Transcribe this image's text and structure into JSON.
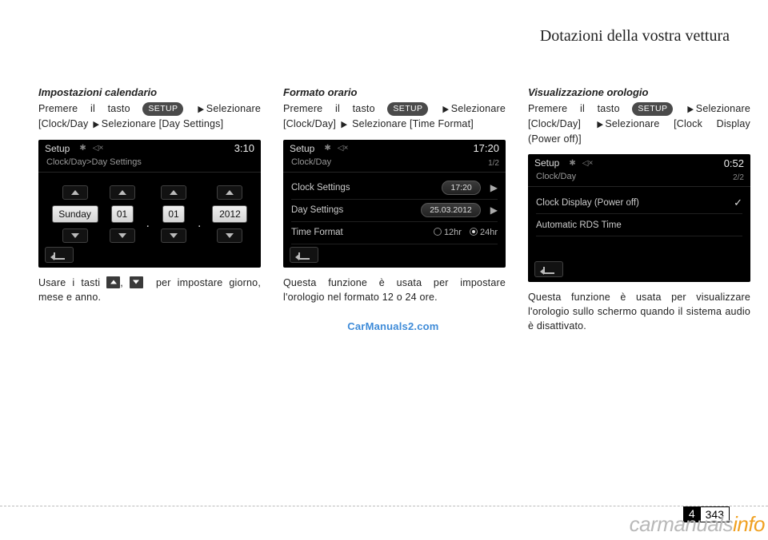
{
  "header": {
    "title": "Dotazioni della vostra vettura"
  },
  "col1": {
    "heading": "Impostazioni calendario",
    "line1a": "Premere il tasto ",
    "setup": "SETUP",
    "line1b": "Selezionare [Clock/Day",
    "line1c": "Selezionare [Day Settings]",
    "screen": {
      "title": "Setup",
      "time": "3:10",
      "breadcrumb": "Clock/Day>Day Settings",
      "day": "Sunday",
      "dd": "01",
      "mm": "01",
      "yyyy": "2012"
    },
    "after1": "Usare  i  tasti ",
    "after_comma": ", ",
    "after2": "per  impostare giorno, mese e anno."
  },
  "col2": {
    "heading": "Formato orario",
    "line1a": "Premere il tasto ",
    "setup": "SETUP",
    "line1b": "Selezionare [Clock/Day] ",
    "line1c": " Selezionare [Time Format]",
    "screen": {
      "title": "Setup",
      "time": "17:20",
      "page": "1/2",
      "breadcrumb": "Clock/Day",
      "row1": "Clock Settings",
      "row1v": "17:20",
      "row2": "Day Settings",
      "row2v": "25.03.2012",
      "row3": "Time Format",
      "opt12": "12hr",
      "opt24": "24hr"
    },
    "after": "Questa funzione è usata per impostare l'orologio nel formato 12 o 24 ore."
  },
  "col3": {
    "heading": "Visualizzazione orologio",
    "line1a": "Premere il tasto ",
    "setup": "SETUP",
    "line1b": "Selezionare [Clock/Day] ",
    "line1c": "Selezionare [Clock Display (Power off)]",
    "screen": {
      "title": "Setup",
      "time": "0:52",
      "page": "2/2",
      "breadcrumb": "Clock/Day",
      "row1": "Clock Display (Power off)",
      "row2": "Automatic RDS Time"
    },
    "after": "Questa funzione è usata per visualizzare l'orologio sullo schermo quando il sistema audio è disattivato."
  },
  "footer": {
    "chapter": "4",
    "page": "343",
    "wm1": "CarManuals2.com",
    "wm2a": "carmanuals",
    "wm2b": "info"
  }
}
